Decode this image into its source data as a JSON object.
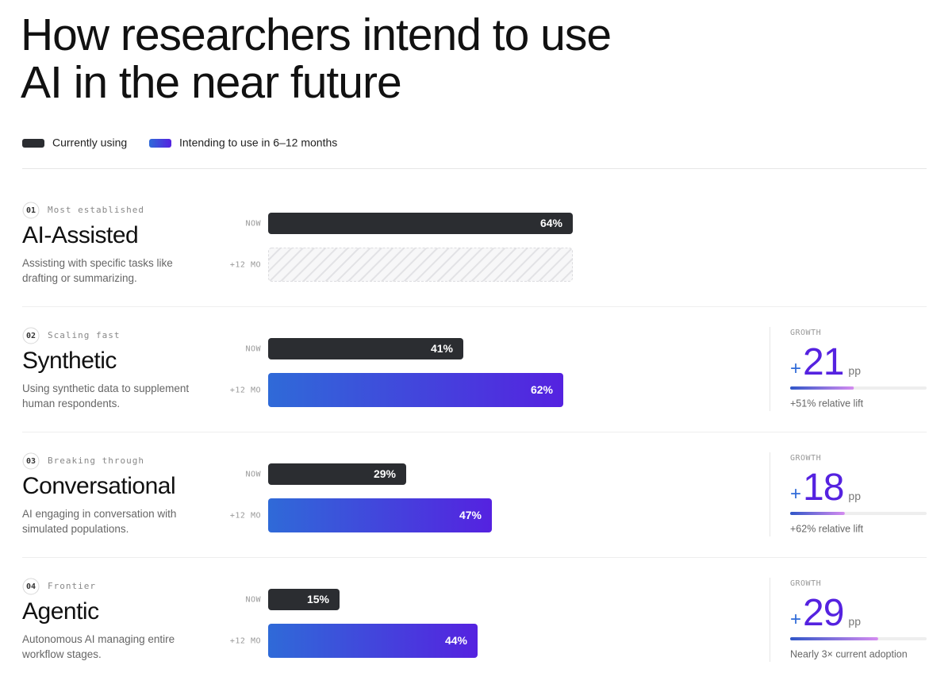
{
  "chart_data": {
    "type": "bar",
    "title": "How researchers intend to use AI in the near future",
    "categories": [
      "AI-Assisted",
      "Synthetic",
      "Conversational",
      "Agentic"
    ],
    "numbers": [
      "01",
      "02",
      "03",
      "04"
    ],
    "tags": [
      "Most established",
      "Scaling fast",
      "Breaking through",
      "Frontier"
    ],
    "descriptions": [
      "Assisting with specific tasks like drafting or summarizing.",
      "Using synthetic data to supplement human respondents.",
      "AI engaging in conversation with simulated populations.",
      "Autonomous AI managing entire workflow stages."
    ],
    "row_labels": [
      "NOW",
      "+12 MO"
    ],
    "series": [
      {
        "name": "Currently using",
        "color": "#2b2d31",
        "values": [
          64,
          41,
          29,
          15
        ],
        "value_labels": [
          "64%",
          "41%",
          "29%",
          "15%"
        ]
      },
      {
        "name": "Intending to use in 6–12 months",
        "color": "#5522e0",
        "values": [
          null,
          62,
          47,
          44
        ],
        "value_labels": [
          null,
          "62%",
          "47%",
          "44%"
        ]
      }
    ],
    "xlim": [
      0,
      100
    ],
    "growth": {
      "label": "GROWTH",
      "sign": "+",
      "unit": "pp",
      "values": [
        null,
        21,
        18,
        29
      ],
      "lim": [
        0,
        45
      ],
      "notes": [
        null,
        "+51% relative lift",
        "+62% relative lift",
        "Nearly 3× current adoption"
      ]
    }
  }
}
